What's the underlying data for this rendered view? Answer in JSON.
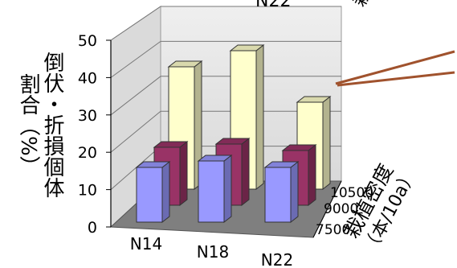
{
  "chart_data": {
    "type": "bar",
    "subtype": "3d-grouped",
    "ylabel_line1": "倒伏・折損個体",
    "ylabel_line2": "割合（%）",
    "zlabel_line1": "栽植密度",
    "zlabel_line2": "（本/10a）",
    "categories": [
      "N14",
      "N18",
      "N22"
    ],
    "ylim": [
      0,
      50
    ],
    "yticks": [
      "0",
      "10",
      "20",
      "30",
      "40",
      "50"
    ],
    "series": [
      {
        "name": "7500",
        "color": "#9999ff",
        "values": [
          17,
          19,
          17
        ]
      },
      {
        "name": "9000",
        "color": "#993366",
        "values": [
          18,
          19,
          17
        ]
      },
      {
        "name": "10500",
        "color": "#ffffcc",
        "values": [
          38,
          43,
          27
        ]
      }
    ],
    "grid": true,
    "back_labels": {
      "top_center": "N22",
      "top_right": "栽植密度 (本/10a)"
    }
  }
}
